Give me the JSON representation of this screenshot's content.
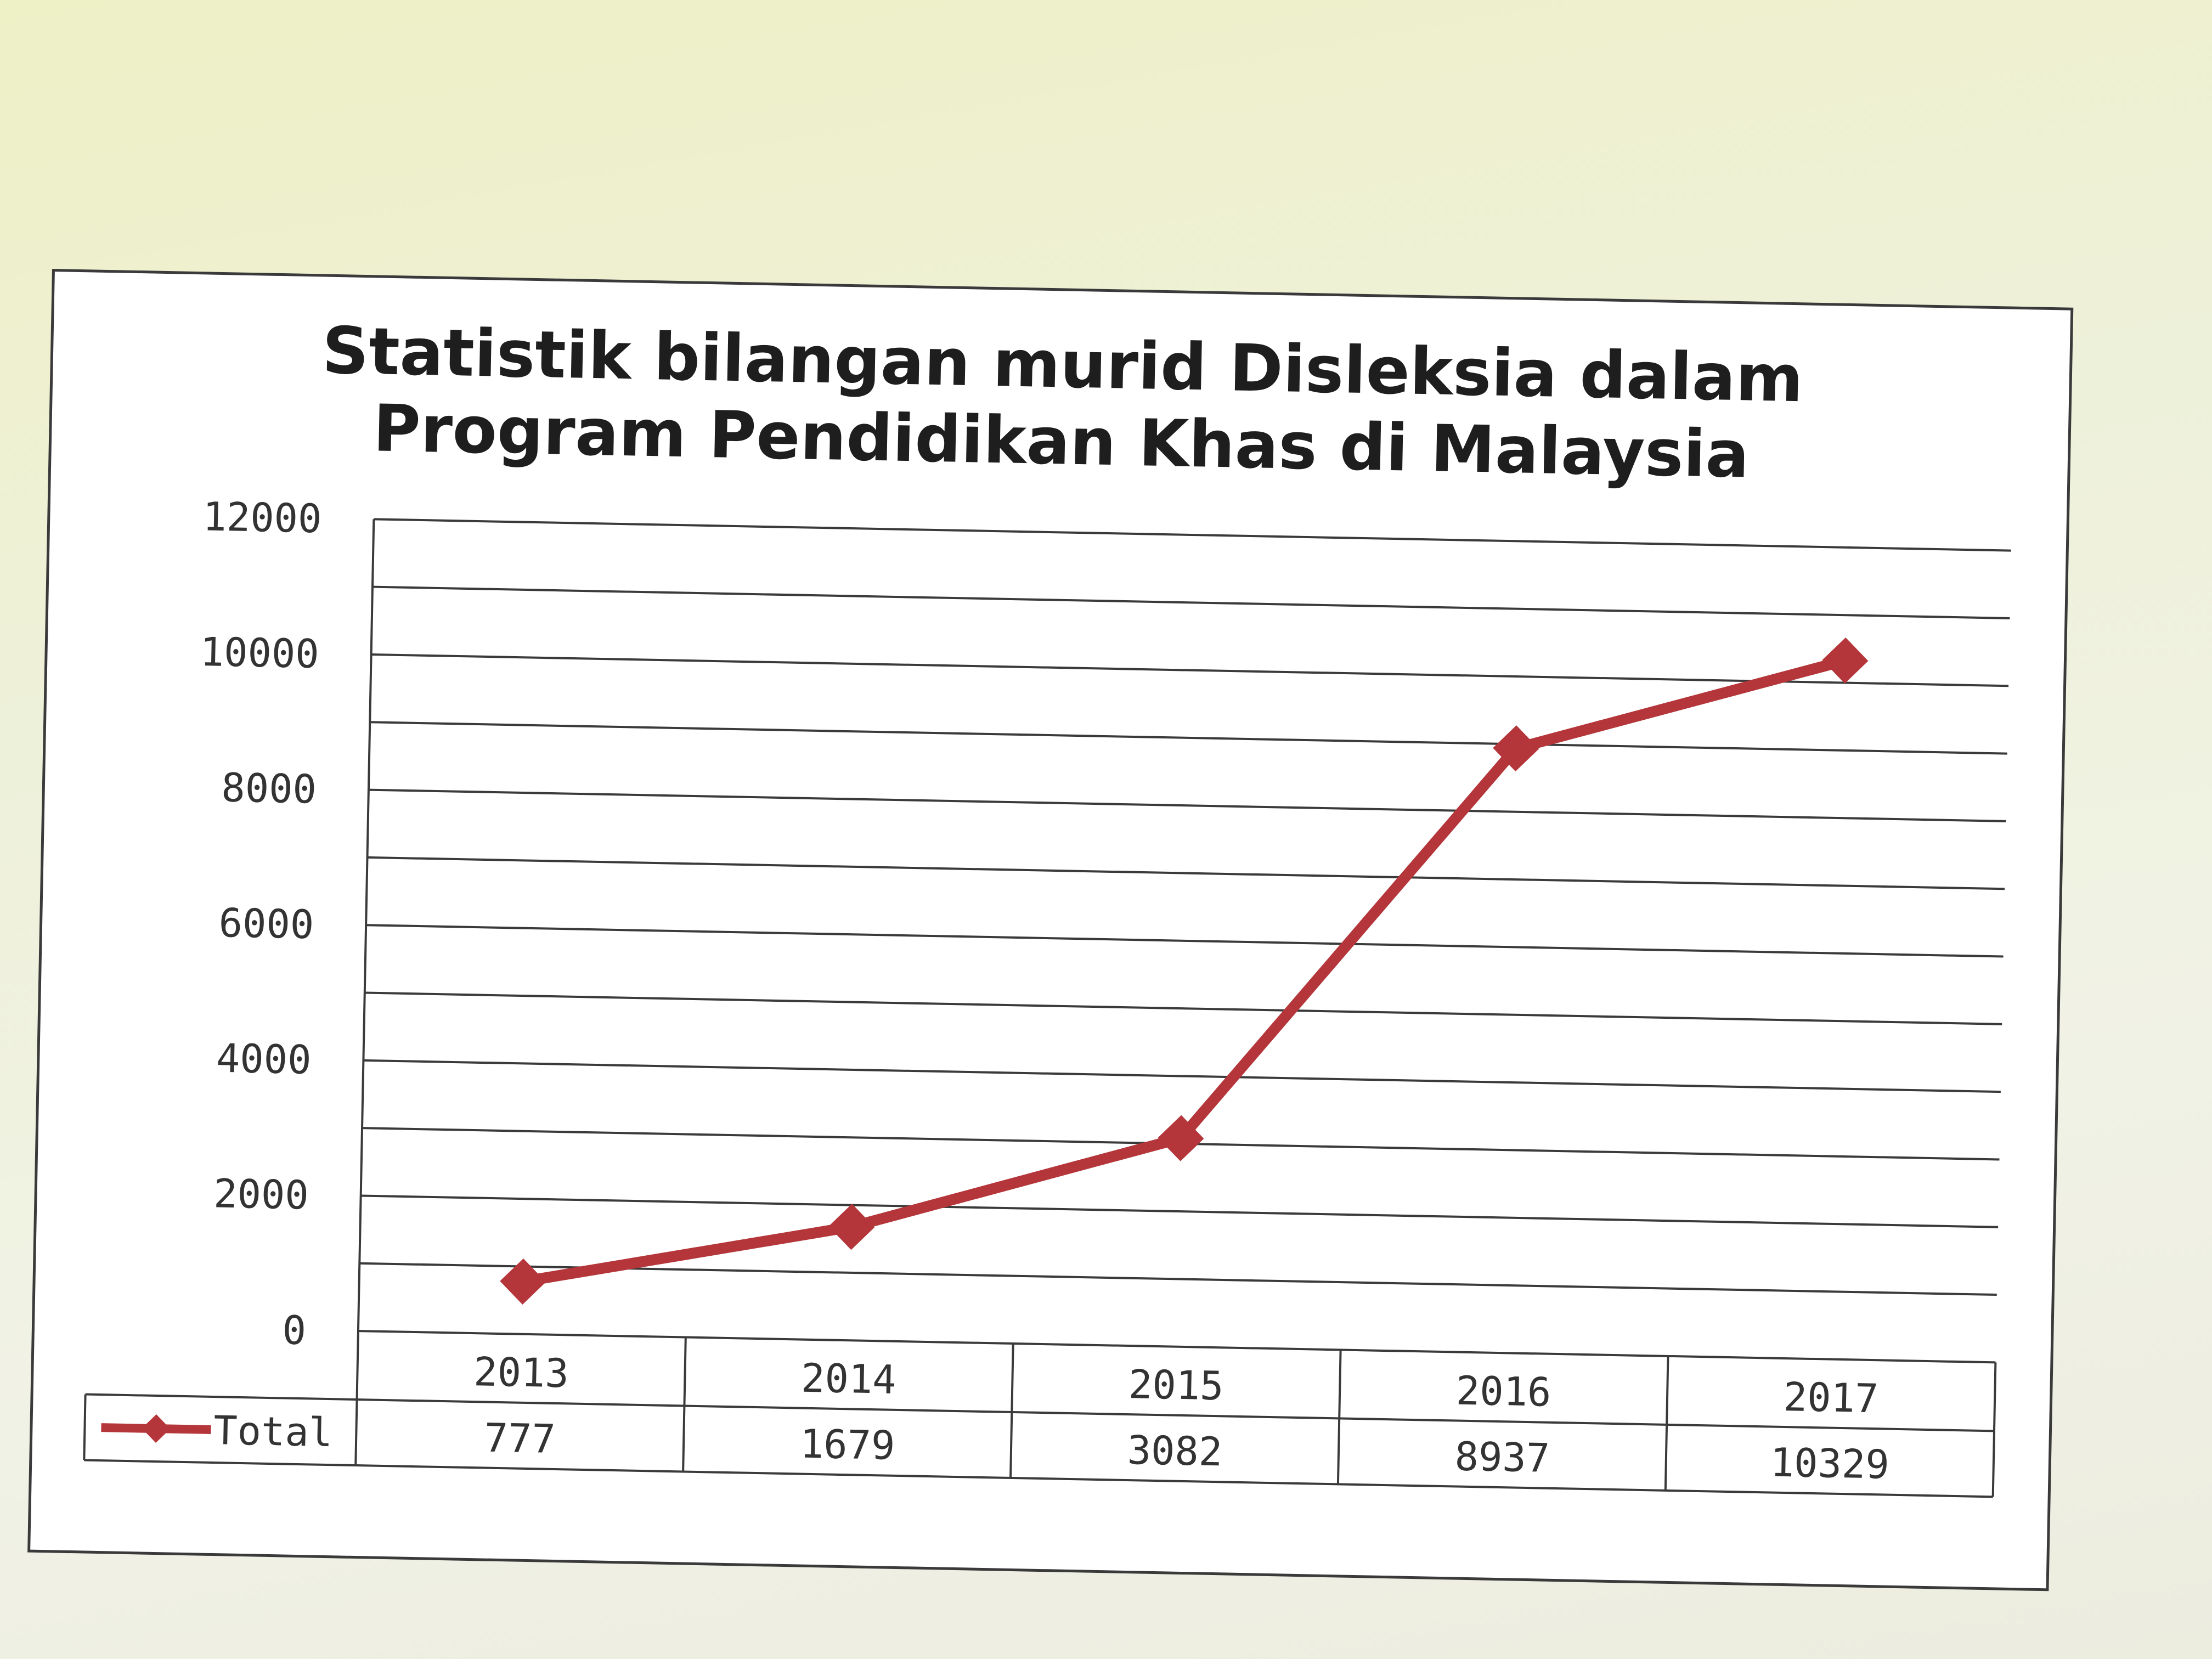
{
  "chart_data": {
    "type": "line",
    "title": "Statistik bilangan murid Disleksia dalam Program Pendidikan Khas di Malaysia",
    "title_lines": [
      "Statistik bilangan murid Disleksia dalam",
      "Program Pendidikan Khas di Malaysia"
    ],
    "categories": [
      "2013",
      "2014",
      "2015",
      "2016",
      "2017"
    ],
    "series": [
      {
        "name": "Total",
        "values": [
          777,
          1679,
          3082,
          8937,
          10329
        ],
        "value_labels": [
          "777",
          "1679",
          "3082",
          "8937",
          "10329"
        ],
        "color": "#b5363a",
        "marker": "diamond"
      }
    ],
    "ylim": [
      0,
      12000
    ],
    "yticks": [
      0,
      2000,
      4000,
      6000,
      8000,
      10000,
      12000
    ],
    "ytick_labels": [
      "0",
      "2000",
      "4000",
      "6000",
      "8000",
      "10000",
      "12000"
    ],
    "grid": true,
    "legend": "data-table-left",
    "data_table": true
  },
  "colors": {
    "series": "#b5363a",
    "grid": "#3a3a3a",
    "border": "#3a3a3a",
    "plot_background": "#ffffff",
    "surroundings": "#eef1d9"
  }
}
